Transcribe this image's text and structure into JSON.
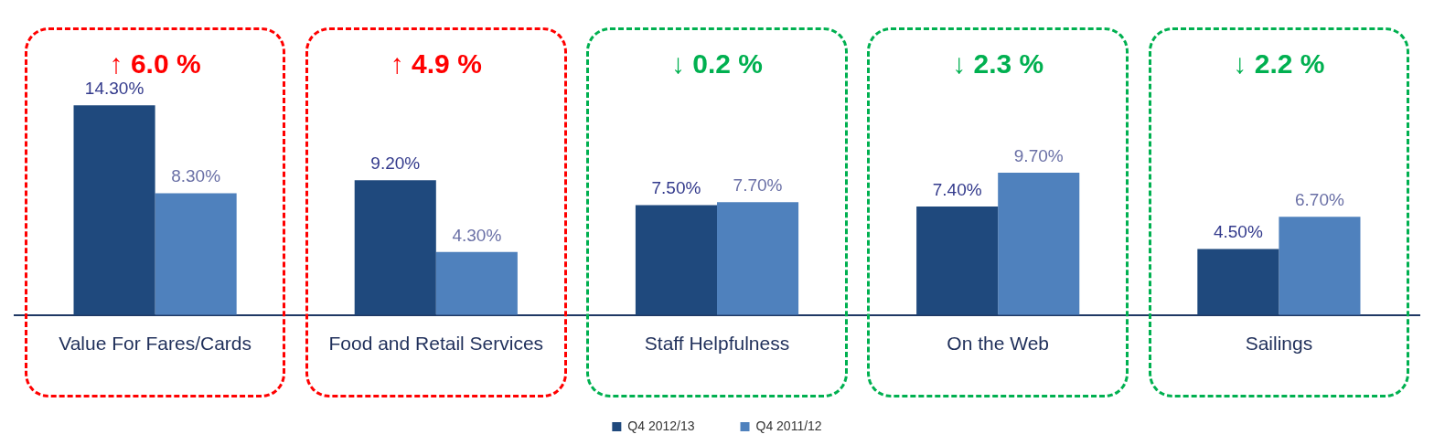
{
  "chart_data": {
    "type": "bar",
    "categories": [
      "Value For Fares/Cards",
      "Food and Retail Services",
      "Staff Helpfulness",
      "On the Web",
      "Sailings"
    ],
    "series": [
      {
        "name": "Q4 2012/13",
        "color": "#1f497d",
        "values": [
          14.3,
          9.2,
          7.5,
          7.4,
          4.5
        ],
        "value_labels": [
          "14.30%",
          "9.20%",
          "7.50%",
          "7.40%",
          "4.50%"
        ]
      },
      {
        "name": "Q4 2011/12",
        "color": "#4f81bd",
        "values": [
          8.3,
          4.3,
          7.7,
          9.7,
          6.7
        ],
        "value_labels": [
          "8.30%",
          "4.30%",
          "7.70%",
          "9.70%",
          "6.70%"
        ]
      }
    ],
    "tick_labels": "x",
    "grid": false,
    "legend": "bottom",
    "annotations": [
      "↑ 6.0 %",
      "↑ 4.9 %",
      "↓ 0.2 %",
      "↓ 2.3 %",
      "↓ 2.2 %"
    ]
  }
}
